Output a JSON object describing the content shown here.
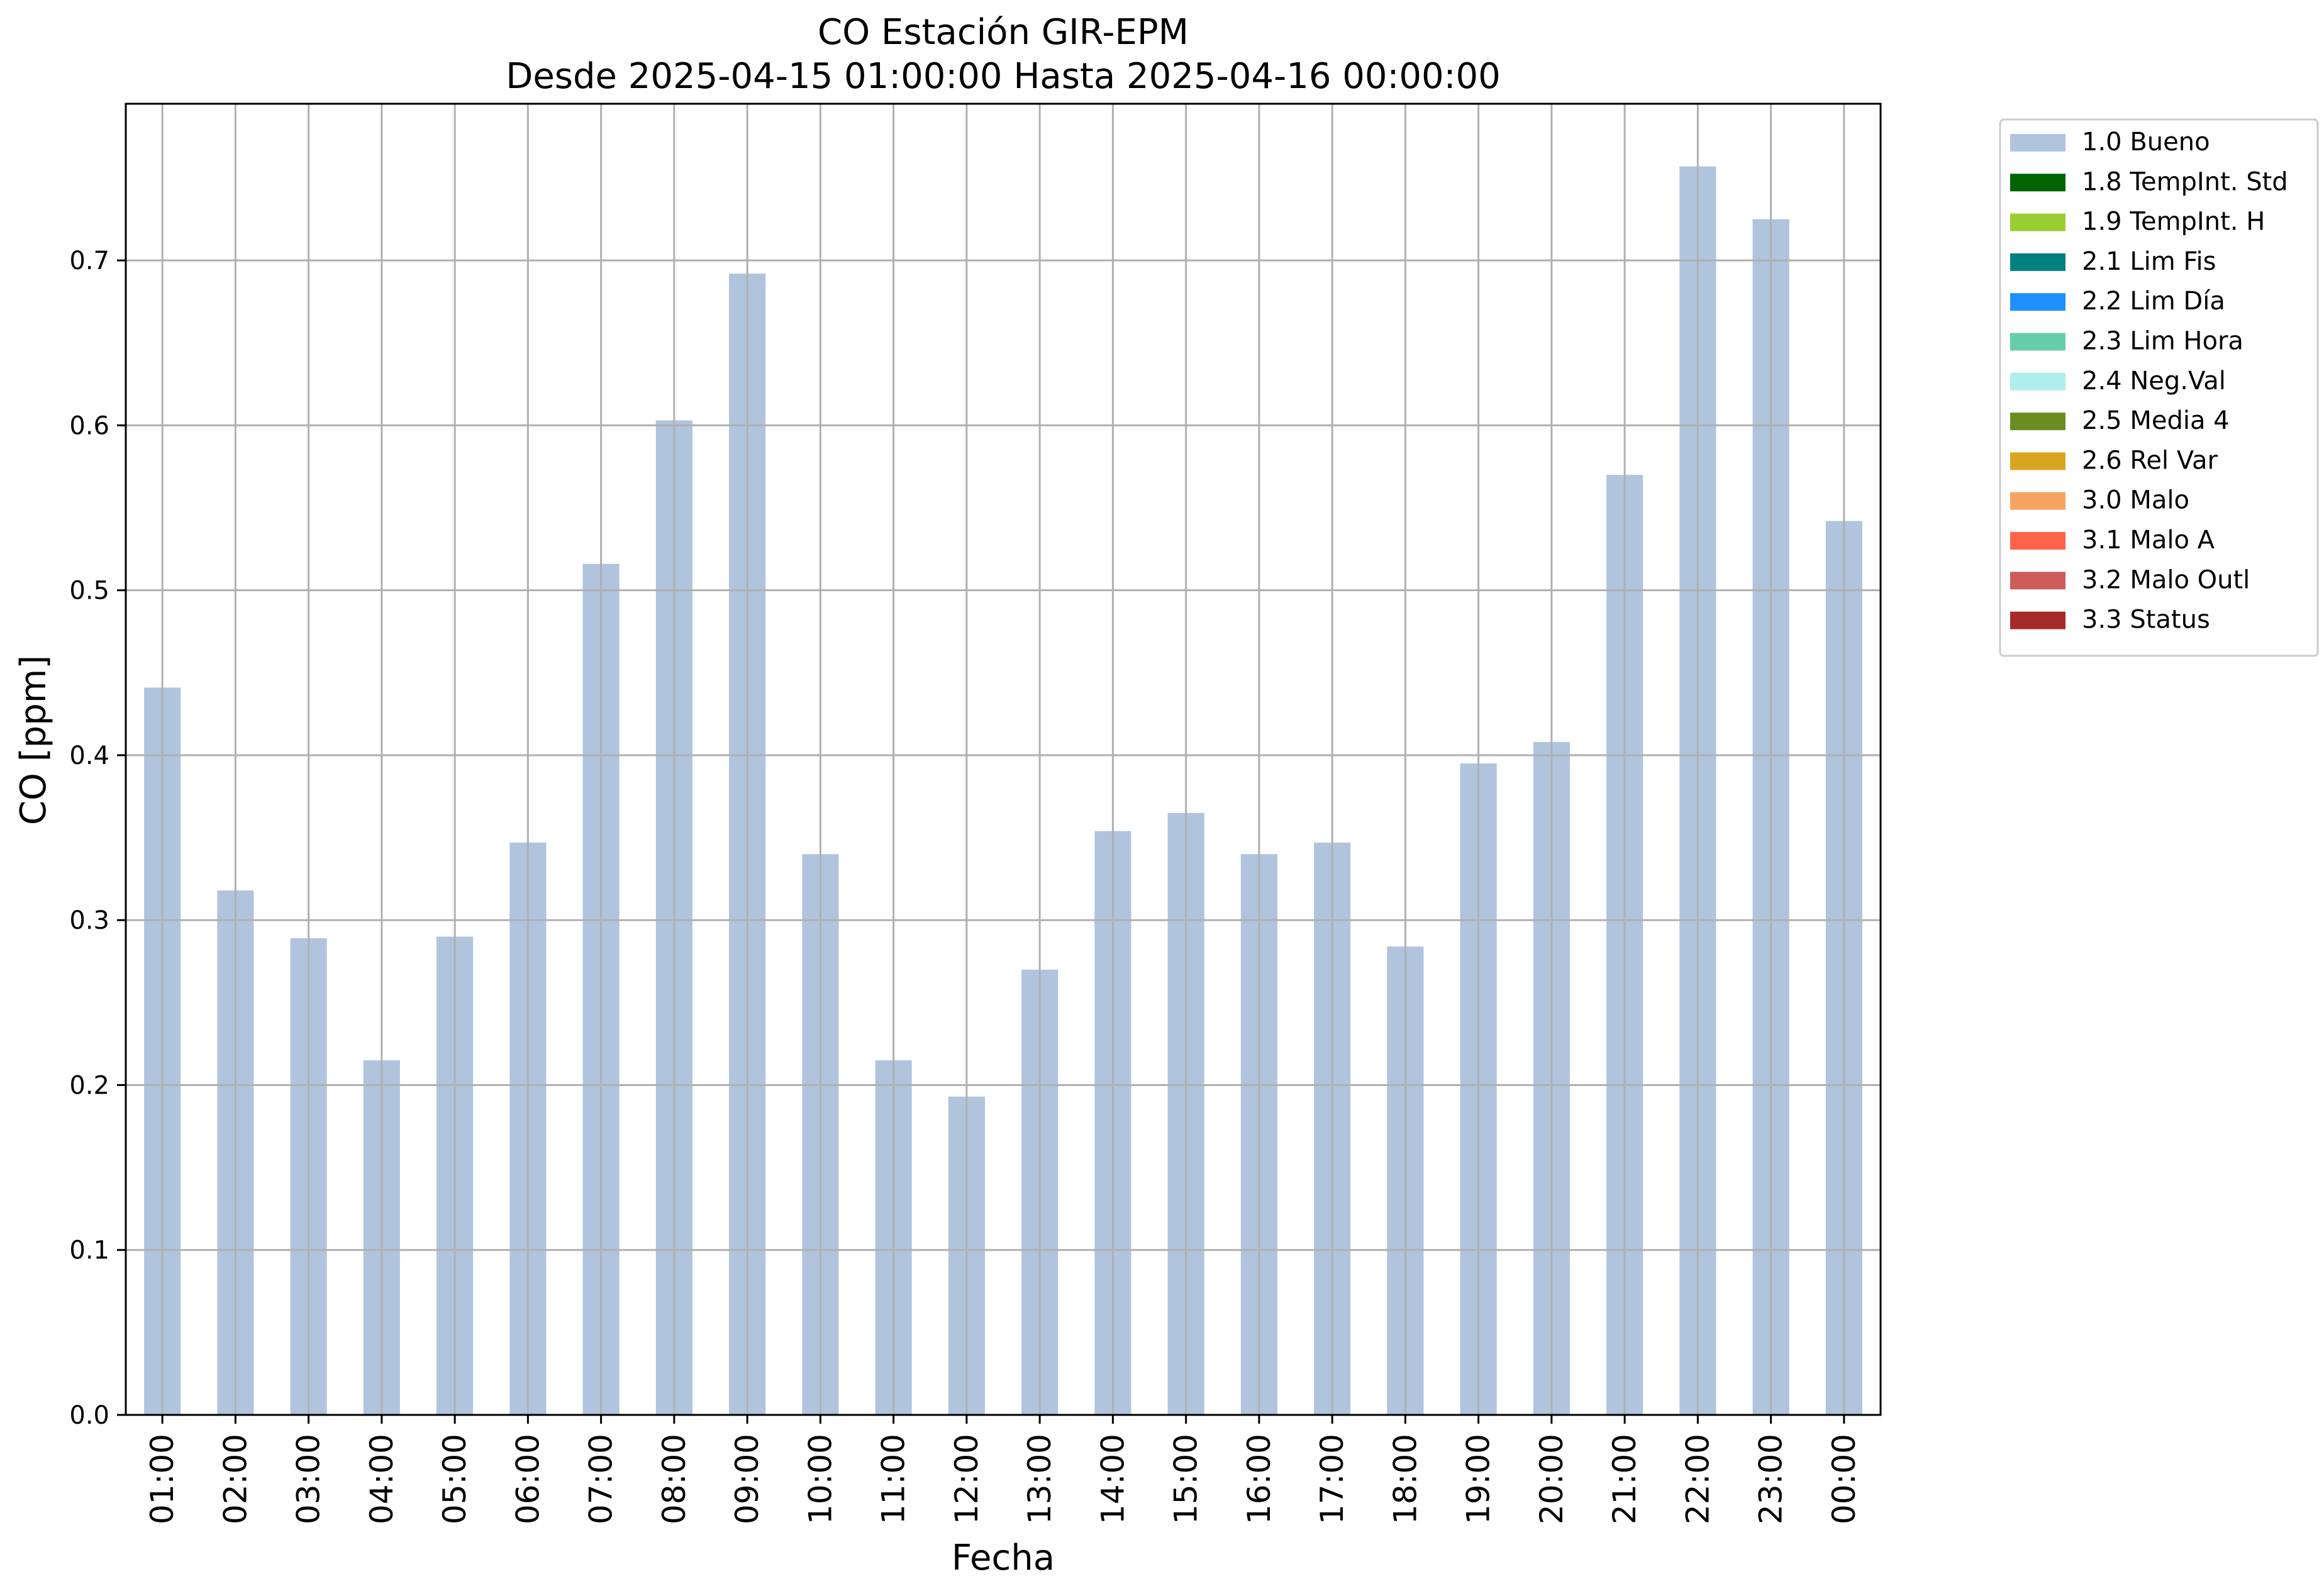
{
  "chart_data": {
    "type": "bar",
    "title": "CO Estación GIR-EPM",
    "subtitle": "Desde 2025-04-15 01:00:00 Hasta 2025-04-16 00:00:00",
    "xlabel": "Fecha",
    "ylabel": "CO [ppm]",
    "ylim": [
      0,
      0.795
    ],
    "yticks": [
      0.0,
      0.1,
      0.2,
      0.3,
      0.4,
      0.5,
      0.6,
      0.7
    ],
    "ytick_labels": [
      "0.0",
      "0.1",
      "0.2",
      "0.3",
      "0.4",
      "0.5",
      "0.6",
      "0.7"
    ],
    "grid": true,
    "legend_placement": "outside-top-right",
    "categories": [
      "01:00",
      "02:00",
      "03:00",
      "04:00",
      "05:00",
      "06:00",
      "07:00",
      "08:00",
      "09:00",
      "10:00",
      "11:00",
      "12:00",
      "13:00",
      "14:00",
      "15:00",
      "16:00",
      "17:00",
      "18:00",
      "19:00",
      "20:00",
      "21:00",
      "22:00",
      "23:00",
      "00:00"
    ],
    "series": [
      {
        "name": "1.0 Bueno",
        "color": "#b0c4de",
        "values": [
          0.441,
          0.318,
          0.289,
          0.215,
          0.29,
          0.347,
          0.516,
          0.603,
          0.692,
          0.34,
          0.215,
          0.193,
          0.27,
          0.354,
          0.365,
          0.34,
          0.347,
          0.284,
          0.395,
          0.408,
          0.57,
          0.757,
          0.725,
          0.542
        ]
      }
    ],
    "legend": [
      {
        "label": "1.0 Bueno",
        "color": "#b0c4de"
      },
      {
        "label": "1.8 TempInt. Std",
        "color": "#006400"
      },
      {
        "label": "1.9 TempInt. H",
        "color": "#9acd32"
      },
      {
        "label": "2.1 Lim Fis",
        "color": "#008080"
      },
      {
        "label": "2.2 Lim Día",
        "color": "#1e90ff"
      },
      {
        "label": "2.3 Lim Hora",
        "color": "#66cdaa"
      },
      {
        "label": "2.4 Neg.Val",
        "color": "#afeeee"
      },
      {
        "label": "2.5 Media 4",
        "color": "#6b8e23"
      },
      {
        "label": "2.6 Rel Var",
        "color": "#daa520"
      },
      {
        "label": "3.0 Malo",
        "color": "#f4a460"
      },
      {
        "label": "3.1 Malo A",
        "color": "#ff6347"
      },
      {
        "label": "3.2 Malo Outl",
        "color": "#cd5c5c"
      },
      {
        "label": "3.3 Status",
        "color": "#a52a2a"
      }
    ]
  }
}
